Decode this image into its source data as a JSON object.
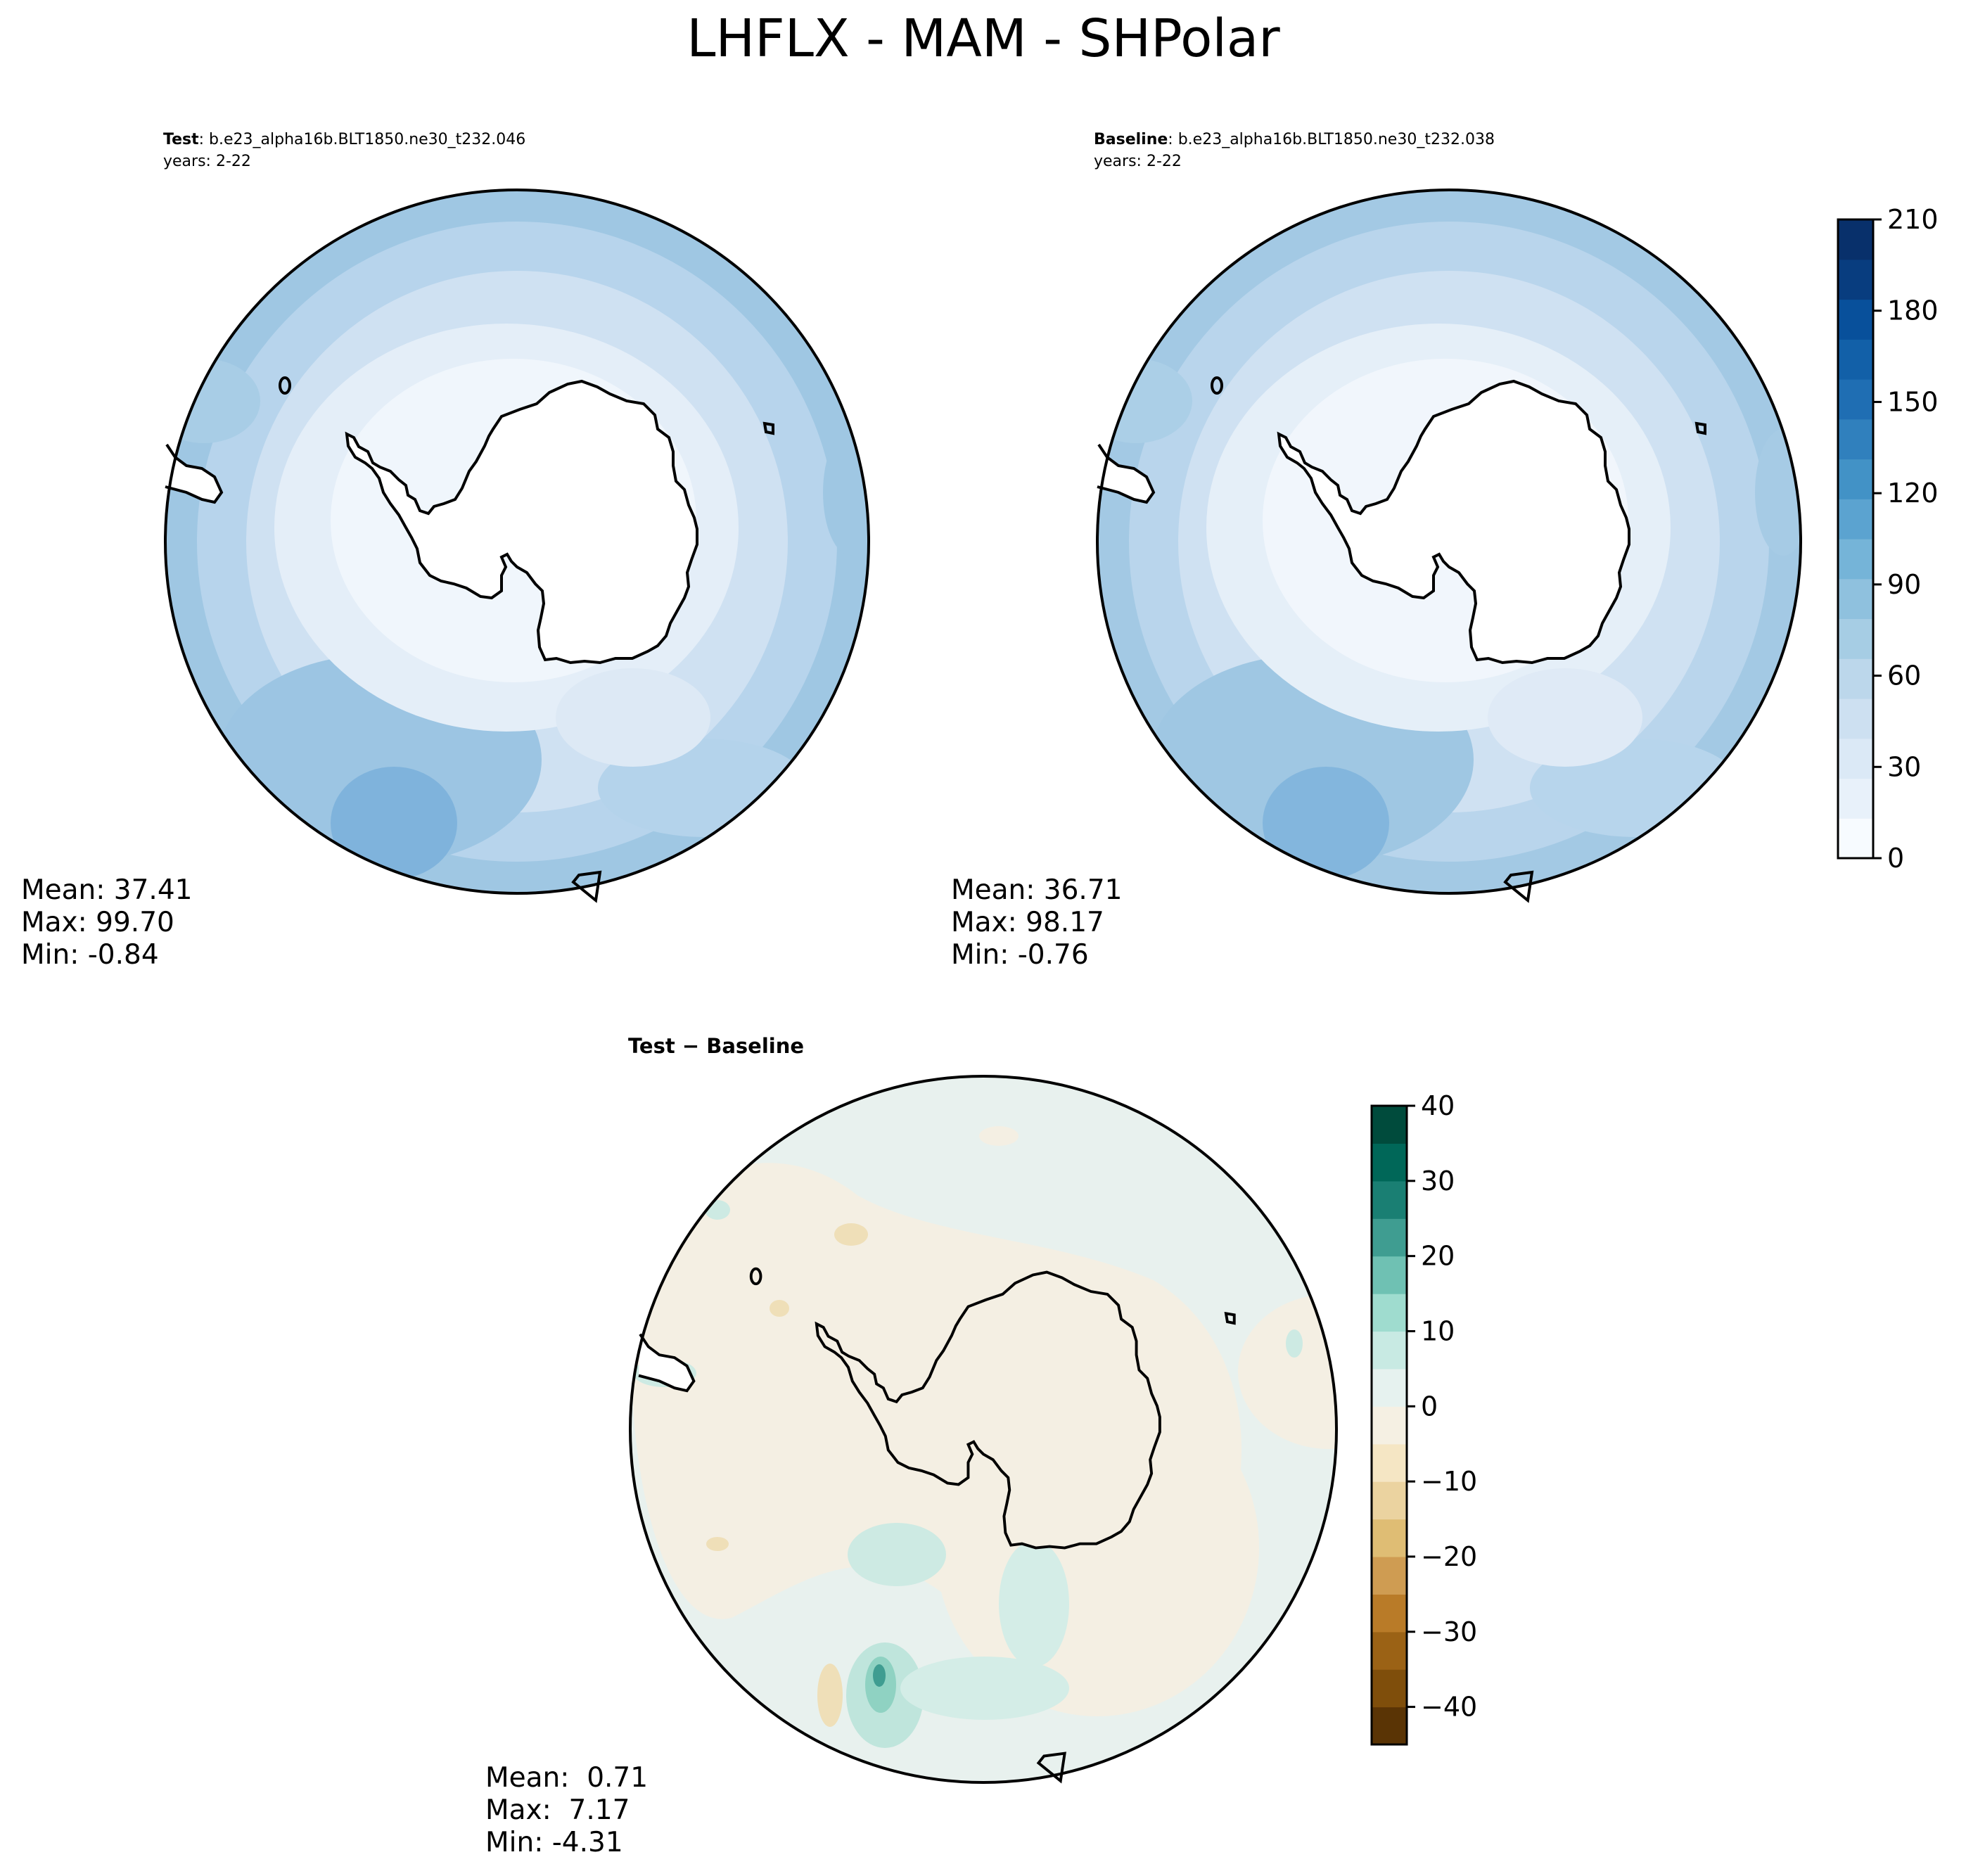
{
  "figure": {
    "title": "LHFLX - MAM - SHPolar"
  },
  "panels": [
    {
      "key": "test",
      "label_bold": "Test",
      "label_rest": ": b.e23_alpha16b.BLT1850.ne30_t232.046",
      "years": "years: 2-22",
      "stats": {
        "mean": "Mean: 37.41",
        "max": "Max: 99.70",
        "min": "Min: -0.84"
      }
    },
    {
      "key": "baseline",
      "label_bold": "Baseline",
      "label_rest": ": b.e23_alpha16b.BLT1850.ne30_t232.038",
      "years": "years: 2-22",
      "stats": {
        "mean": "Mean: 36.71",
        "max": "Max: 98.17",
        "min": "Min: -0.76"
      }
    },
    {
      "key": "difference",
      "label_bold": "Test − Baseline",
      "label_rest": "",
      "years": "",
      "stats": {
        "mean": "Mean:  0.71",
        "max": "Max:  7.17",
        "min": "Min: -4.31"
      }
    }
  ],
  "colors": {
    "blues": [
      "#f7fbff",
      "#e8f1fa",
      "#dbe9f6",
      "#cde0f1",
      "#bcd7eb",
      "#a6cde4",
      "#8fc1de",
      "#75b4d8",
      "#5ba3d0",
      "#4292c6",
      "#3080bd",
      "#1f6eb3",
      "#1260a8",
      "#08509b",
      "#083d7f",
      "#08306b"
    ],
    "brbg": [
      "#5a3405",
      "#7f4e0b",
      "#9b6215",
      "#b97b28",
      "#cf9c52",
      "#dfbd74",
      "#ebd3a0",
      "#f5e6c4",
      "#f5f0e3",
      "#e6f2ef",
      "#c8eae3",
      "#9fdccf",
      "#6fc1b3",
      "#3f9d91",
      "#1a7f73",
      "#006758",
      "#004b3c"
    ],
    "coast": "#000000"
  },
  "chart_data": [
    {
      "type": "heatmap",
      "projection": "south polar stereographic",
      "panel": "Test",
      "colorbar": {
        "vmin": 0,
        "vmax": 210,
        "ticks": [
          0,
          30,
          60,
          90,
          120,
          150,
          180,
          210
        ],
        "tick_labels": [
          "0",
          "30",
          "60",
          "90",
          "120",
          "150",
          "180",
          "210"
        ],
        "levels": 15,
        "colormap": "Blues"
      },
      "values_summary": {
        "mean": 37.41,
        "max": 99.7,
        "min": -0.84
      }
    },
    {
      "type": "heatmap",
      "projection": "south polar stereographic",
      "panel": "Baseline",
      "colorbar": {
        "vmin": 0,
        "vmax": 210,
        "ticks": [
          0,
          30,
          60,
          90,
          120,
          150,
          180,
          210
        ],
        "tick_labels": [
          "0",
          "30",
          "60",
          "90",
          "120",
          "150",
          "180",
          "210"
        ],
        "levels": 15,
        "colormap": "Blues"
      },
      "values_summary": {
        "mean": 36.71,
        "max": 98.17,
        "min": -0.76
      }
    },
    {
      "type": "heatmap",
      "projection": "south polar stereographic",
      "panel": "Test − Baseline",
      "colorbar": {
        "vmin": -45,
        "vmax": 40,
        "ticks": [
          -40,
          -30,
          -20,
          -10,
          0,
          10,
          20,
          30,
          40
        ],
        "tick_labels": [
          "−40",
          "−30",
          "−20",
          "−10",
          "0",
          "10",
          "20",
          "30",
          "40"
        ],
        "colormap": "BrBG"
      },
      "values_summary": {
        "mean": 0.71,
        "max": 7.17,
        "min": -4.31
      }
    }
  ]
}
